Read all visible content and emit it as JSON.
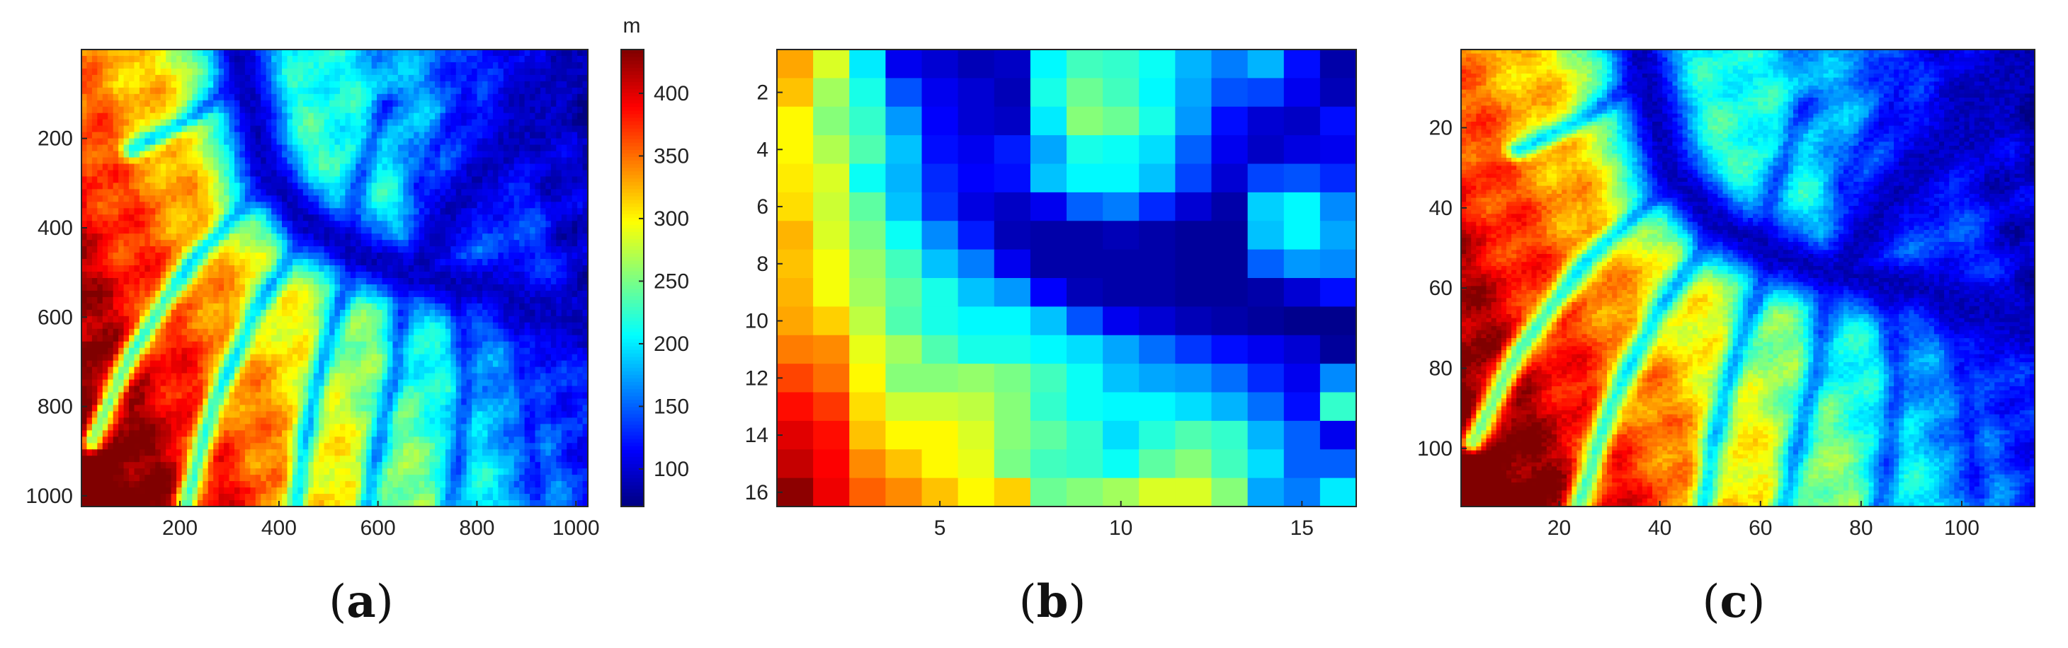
{
  "chart_data": [
    {
      "id": "a",
      "type": "heatmap",
      "title": "",
      "panel_label": "a",
      "xlabel": "",
      "ylabel": "",
      "xlim": [
        1,
        1024
      ],
      "ylim": [
        1024,
        1
      ],
      "x_ticks": [
        200,
        400,
        600,
        800,
        1000
      ],
      "y_ticks": [
        200,
        400,
        600,
        800,
        1000
      ],
      "grid_cells": [
        96,
        72
      ],
      "colormap": "jet",
      "colorbar": {
        "label": "m",
        "min": 70,
        "max": 435,
        "ticks": [
          100,
          150,
          200,
          250,
          300,
          350,
          400
        ]
      },
      "description_values": "elevation field in metres; high (up to ~430 m) in lower-left, river valley ~90 m running from top-center through center to right, with dendritic tributaries"
    },
    {
      "id": "b",
      "type": "heatmap",
      "title": "",
      "panel_label": "b",
      "xlabel": "",
      "ylabel": "",
      "xlim": [
        0.5,
        16.5
      ],
      "ylim": [
        16.5,
        0.5
      ],
      "x_ticks": [
        5,
        10,
        15
      ],
      "y_ticks": [
        2,
        4,
        6,
        8,
        10,
        12,
        14,
        16
      ],
      "colormap": "jet",
      "clim": [
        70,
        435
      ],
      "values": [
        [
          330,
          285,
          200,
          110,
          100,
          90,
          95,
          205,
          230,
          225,
          210,
          180,
          160,
          180,
          120,
          85
        ],
        [
          320,
          265,
          215,
          145,
          110,
          100,
          90,
          215,
          245,
          230,
          205,
          175,
          145,
          140,
          110,
          90
        ],
        [
          300,
          255,
          225,
          170,
          115,
          100,
          95,
          200,
          255,
          245,
          215,
          170,
          120,
          100,
          95,
          120
        ],
        [
          300,
          270,
          235,
          185,
          120,
          110,
          125,
          175,
          215,
          210,
          195,
          150,
          110,
          95,
          105,
          110
        ],
        [
          305,
          285,
          210,
          180,
          130,
          115,
          120,
          185,
          205,
          205,
          185,
          140,
          100,
          140,
          145,
          130
        ],
        [
          310,
          280,
          240,
          185,
          135,
          105,
          95,
          110,
          150,
          160,
          130,
          100,
          85,
          190,
          205,
          165
        ],
        [
          325,
          285,
          250,
          210,
          165,
          125,
          90,
          85,
          85,
          90,
          85,
          80,
          80,
          185,
          205,
          175
        ],
        [
          320,
          295,
          260,
          230,
          185,
          160,
          110,
          85,
          85,
          85,
          85,
          80,
          80,
          150,
          170,
          165
        ],
        [
          325,
          295,
          265,
          240,
          215,
          185,
          170,
          115,
          90,
          85,
          85,
          80,
          80,
          85,
          100,
          120
        ],
        [
          330,
          315,
          275,
          235,
          215,
          205,
          205,
          185,
          145,
          110,
          100,
          90,
          85,
          80,
          75,
          75
        ],
        [
          345,
          340,
          290,
          265,
          235,
          215,
          215,
          205,
          195,
          175,
          155,
          135,
          120,
          110,
          100,
          80
        ],
        [
          365,
          350,
          300,
          255,
          255,
          260,
          250,
          230,
          210,
          185,
          175,
          170,
          155,
          130,
          110,
          165
        ],
        [
          385,
          370,
          310,
          280,
          280,
          275,
          255,
          225,
          210,
          205,
          205,
          195,
          180,
          155,
          120,
          225
        ],
        [
          400,
          385,
          320,
          300,
          300,
          285,
          255,
          240,
          225,
          195,
          220,
          235,
          225,
          180,
          150,
          110
        ],
        [
          410,
          390,
          340,
          320,
          300,
          290,
          250,
          230,
          225,
          210,
          240,
          255,
          230,
          195,
          150,
          150
        ],
        [
          430,
          395,
          355,
          340,
          320,
          300,
          315,
          245,
          255,
          265,
          285,
          285,
          255,
          175,
          160,
          200
        ]
      ]
    },
    {
      "id": "c",
      "type": "heatmap",
      "title": "",
      "panel_label": "c",
      "xlabel": "",
      "ylabel": "",
      "xlim": [
        0.5,
        114.5
      ],
      "ylim": [
        114.5,
        0.5
      ],
      "x_ticks": [
        20,
        40,
        60,
        80,
        100
      ],
      "y_ticks": [
        20,
        40,
        60,
        80,
        100
      ],
      "grid_cells": [
        114,
        114
      ],
      "colormap": "jet",
      "description_values": "same elevation field as (a) resampled to 114 × 114 cells"
    }
  ]
}
